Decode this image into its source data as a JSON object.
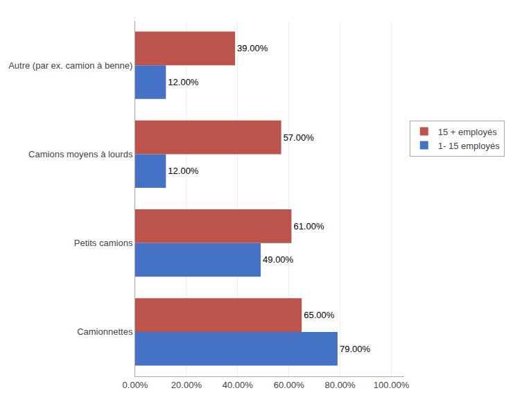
{
  "chart_data": {
    "type": "bar",
    "orientation": "horizontal",
    "categories": [
      "Camionnettes",
      "Petits camions",
      "Camions moyens à lourds",
      "Autre (par ex. camion à benne)"
    ],
    "series": [
      {
        "name": "15 + employés",
        "color": "#bc544b",
        "values": [
          0.65,
          0.61,
          0.57,
          0.39
        ],
        "value_labels": [
          "65.00%",
          "61.00%",
          "57.00%",
          "39.00%"
        ]
      },
      {
        "name": "1- 15 employés",
        "color": "#4472c4",
        "values": [
          0.79,
          0.49,
          0.12,
          0.12
        ],
        "value_labels": [
          "79.00%",
          "49.00%",
          "12.00%",
          "12.00%"
        ]
      }
    ],
    "xlim": [
      0.0,
      1.05
    ],
    "xticks": [
      {
        "value": 0.0,
        "label": "0.00%"
      },
      {
        "value": 0.2,
        "label": "20.00%"
      },
      {
        "value": 0.4,
        "label": "40.00%"
      },
      {
        "value": 0.6,
        "label": "60.00%"
      },
      {
        "value": 0.8,
        "label": "80.00%"
      },
      {
        "value": 1.0,
        "label": "100.00%"
      }
    ],
    "grid": true,
    "legend": "right",
    "data_labels": true
  }
}
